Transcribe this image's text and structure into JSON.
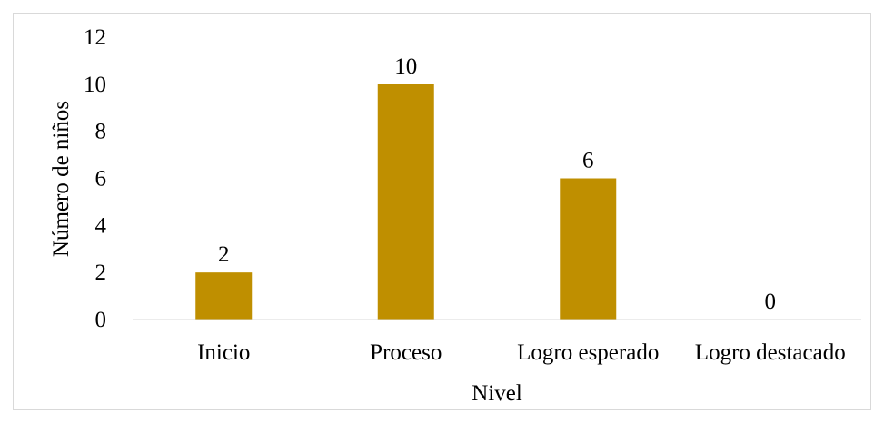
{
  "chart_data": {
    "type": "bar",
    "categories": [
      "Inicio",
      "Proceso",
      "Logro esperado",
      "Logro destacado"
    ],
    "values": [
      2,
      10,
      6,
      0
    ],
    "data_labels": [
      "2",
      "10",
      "6",
      "0"
    ],
    "title": "",
    "xlabel": "Nivel",
    "ylabel": "Número de niños",
    "ylim": [
      0,
      12
    ],
    "yticks": [
      0,
      2,
      4,
      6,
      8,
      10,
      12
    ],
    "ytick_labels": [
      "0",
      "2",
      "4",
      "6",
      "8",
      "10",
      "12"
    ],
    "grid": false,
    "legend": "none",
    "bar_color": "#bf8f00",
    "axis_color": "#d9d9d9"
  }
}
